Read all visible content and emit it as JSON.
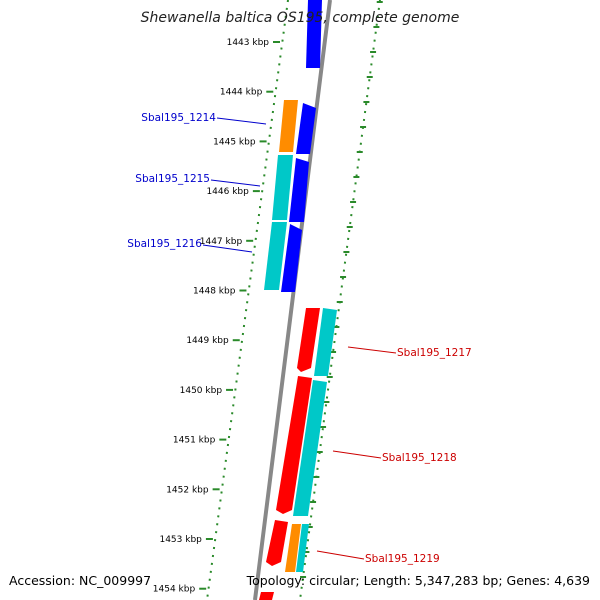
{
  "title": "Shewanella baltica OS195, complete genome",
  "footer": {
    "accession": "Accession: NC_009997",
    "topology": "Topology: circular; Length: 5,347,283 bp; Genes: 4,639"
  },
  "colors": {
    "backbone": "#888888",
    "tick": "#2a8a2a",
    "forward_strand_label": "#0000cc",
    "reverse_strand_label": "#cc0000",
    "forward_cds": "#0000ff",
    "reverse_cds": "#ff0000",
    "rna": "#ff8c00",
    "protein": "#00c8c8"
  },
  "scale": {
    "unit": "kbp",
    "labels": [
      "1443 kbp",
      "1444 kbp",
      "1445 kbp",
      "1446 kbp",
      "1447 kbp",
      "1448 kbp",
      "1449 kbp",
      "1450 kbp",
      "1451 kbp",
      "1452 kbp",
      "1453 kbp",
      "1454 kbp"
    ]
  },
  "genes": [
    {
      "label": "Sbal195_1214",
      "strand": "forward"
    },
    {
      "label": "Sbal195_1215",
      "strand": "forward"
    },
    {
      "label": "Sbal195_1216",
      "strand": "forward"
    },
    {
      "label": "Sbal195_1217",
      "strand": "reverse"
    },
    {
      "label": "Sbal195_1218",
      "strand": "reverse"
    },
    {
      "label": "Sbal195_1219",
      "strand": "reverse"
    }
  ]
}
